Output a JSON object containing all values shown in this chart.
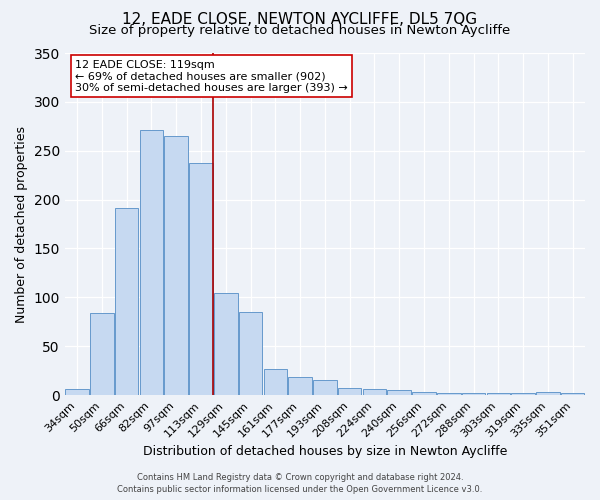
{
  "title": "12, EADE CLOSE, NEWTON AYCLIFFE, DL5 7QG",
  "subtitle": "Size of property relative to detached houses in Newton Aycliffe",
  "xlabel": "Distribution of detached houses by size in Newton Aycliffe",
  "ylabel": "Number of detached properties",
  "categories": [
    "34sqm",
    "50sqm",
    "66sqm",
    "82sqm",
    "97sqm",
    "113sqm",
    "129sqm",
    "145sqm",
    "161sqm",
    "177sqm",
    "193sqm",
    "208sqm",
    "224sqm",
    "240sqm",
    "256sqm",
    "272sqm",
    "288sqm",
    "303sqm",
    "319sqm",
    "335sqm",
    "351sqm"
  ],
  "values": [
    6,
    84,
    191,
    271,
    265,
    237,
    104,
    85,
    27,
    19,
    15,
    7,
    6,
    5,
    3,
    2,
    2,
    2,
    2,
    3,
    2
  ],
  "bar_color": "#c6d9f1",
  "bar_edge_color": "#6699cc",
  "ylim": [
    0,
    350
  ],
  "yticks": [
    0,
    50,
    100,
    150,
    200,
    250,
    300,
    350
  ],
  "vline_x_index": 5,
  "vline_color": "#aa0000",
  "annotation_title": "12 EADE CLOSE: 119sqm",
  "annotation_line1": "← 69% of detached houses are smaller (902)",
  "annotation_line2": "30% of semi-detached houses are larger (393) →",
  "annotation_box_color": "#ffffff",
  "annotation_box_edge_color": "#cc0000",
  "footer_line1": "Contains HM Land Registry data © Crown copyright and database right 2024.",
  "footer_line2": "Contains public sector information licensed under the Open Government Licence v3.0.",
  "background_color": "#eef2f8",
  "plot_background_color": "#eef2f8",
  "title_fontsize": 11,
  "subtitle_fontsize": 9.5,
  "xlabel_fontsize": 9,
  "ylabel_fontsize": 9,
  "tick_fontsize": 8,
  "annotation_fontsize": 8,
  "footer_fontsize": 6
}
